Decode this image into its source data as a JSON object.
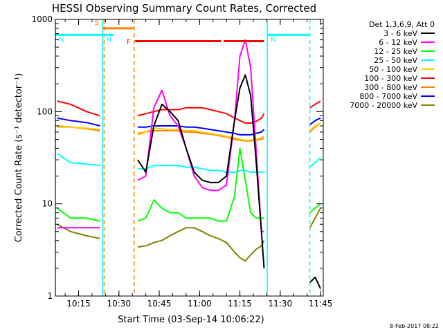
{
  "chart_data": {
    "type": "line",
    "title": "HESSI Observing Summary Count Rates, Corrected",
    "xlabel": "Start Time (03-Sep-14 10:06:22)",
    "ylabel": "Corrected Count Rate (s⁻¹ detector⁻¹)",
    "xlim": [
      "10:06:22",
      "11:46:00"
    ],
    "ylim": [
      1,
      1000
    ],
    "yscale": "log",
    "x_ticks": [
      "10:15",
      "10:30",
      "10:45",
      "11:00",
      "11:15",
      "11:30",
      "11:45"
    ],
    "y_ticks": [
      "1",
      "10",
      "100",
      "1000"
    ],
    "legend_title": "Det 1,3,6,9, Att 0",
    "legend_placement": "right",
    "footer": "8-Feb-2017 08:22",
    "flags": [
      {
        "label": "S",
        "color": "#ff8000",
        "x_start": "10:24:00",
        "x_end": "10:35:30",
        "y": 800
      },
      {
        "label": "N",
        "color": "#00ffff",
        "x_start": "10:06:22",
        "x_end": "10:24:00",
        "y": 680
      },
      {
        "label": "N",
        "color": "#00ffff",
        "x_start": "10:24:00",
        "x_end": "10:28:00",
        "y": 680
      },
      {
        "label": "N",
        "color": "#00ffff",
        "x_start": "11:25:10",
        "x_end": "11:41:00",
        "y": 680
      },
      {
        "label": "F",
        "color": "#ff0000",
        "x_start": "10:36:00",
        "x_end": "11:08:00",
        "y": 580
      },
      {
        "label": "",
        "color": "#ff0000",
        "x_start": "11:09:00",
        "x_end": "11:24:00",
        "y": 580
      }
    ],
    "vlines": [
      {
        "x": "10:06:22",
        "color": "#00ffff",
        "style": "solid"
      },
      {
        "x": "10:24:00",
        "color": "#00ffff",
        "style": "solid"
      },
      {
        "x": "10:24:30",
        "color": "#ff8000",
        "style": "dashed"
      },
      {
        "x": "10:35:40",
        "color": "#ff8000",
        "style": "dashed"
      },
      {
        "x": "11:25:10",
        "color": "#00ffff",
        "style": "solid"
      },
      {
        "x": "11:41:00",
        "color": "#00ffff",
        "style": "dashed"
      }
    ],
    "gaps": [
      [
        "10:24:00",
        "10:36:00"
      ],
      [
        "11:25:10",
        "11:41:00"
      ]
    ],
    "x_data": [
      "10:07",
      "10:12",
      "10:18",
      "10:23",
      "10:37",
      "10:40",
      "10:43",
      "10:46",
      "10:49",
      "10:52",
      "10:55",
      "10:58",
      "11:01",
      "11:04",
      "11:07",
      "11:10",
      "11:13",
      "11:15",
      "11:17",
      "11:19",
      "11:21",
      "11:23",
      "11:24",
      "11:41",
      "11:43",
      "11:45"
    ],
    "series": [
      {
        "name": "3 - 6 keV",
        "color": "#000000",
        "values": [
          null,
          null,
          null,
          null,
          30,
          22,
          70,
          120,
          100,
          80,
          40,
          22,
          18,
          17,
          17,
          20,
          80,
          180,
          250,
          150,
          30,
          5,
          2,
          1.4,
          1.6,
          1.2
        ]
      },
      {
        "name": "6 - 12 keV",
        "color": "#ff00ff",
        "values": [
          5.5,
          5.5,
          5.5,
          5.5,
          18,
          20,
          110,
          170,
          90,
          70,
          40,
          20,
          15,
          14,
          14,
          16,
          80,
          400,
          600,
          300,
          40,
          5,
          5,
          null,
          null,
          null
        ]
      },
      {
        "name": "12 - 25 keV",
        "color": "#00ff00",
        "values": [
          9,
          7,
          7,
          6.5,
          6.5,
          7,
          11,
          9,
          8,
          8,
          7,
          7,
          7,
          7,
          6.5,
          6.5,
          12,
          40,
          18,
          8,
          7,
          7,
          7,
          8,
          9,
          10
        ]
      },
      {
        "name": "25 - 50 keV",
        "color": "#00ffff",
        "values": [
          35,
          28,
          27,
          26,
          24,
          24,
          26,
          26,
          26,
          26,
          25,
          25,
          24,
          23,
          23,
          22,
          22,
          23,
          23,
          22,
          22,
          22,
          22,
          25,
          28,
          32
        ]
      },
      {
        "name": "50 - 100 keV",
        "color": "#ffcc00",
        "values": [
          68,
          68,
          66,
          64,
          56,
          60,
          66,
          65,
          64,
          64,
          62,
          62,
          60,
          58,
          56,
          54,
          52,
          50,
          49,
          49,
          50,
          52,
          54,
          62,
          70,
          75
        ]
      },
      {
        "name": "100 - 300 keV",
        "color": "#ff0000",
        "values": [
          130,
          120,
          100,
          90,
          90,
          95,
          100,
          105,
          105,
          105,
          110,
          110,
          110,
          105,
          100,
          95,
          85,
          80,
          75,
          75,
          78,
          85,
          95,
          110,
          120,
          130
        ]
      },
      {
        "name": "300 - 800 keV",
        "color": "#ff8000",
        "values": [
          70,
          68,
          65,
          62,
          58,
          60,
          62,
          62,
          62,
          62,
          60,
          60,
          58,
          57,
          55,
          53,
          50,
          49,
          48,
          48,
          49,
          50,
          52,
          60,
          68,
          75
        ]
      },
      {
        "name": "800 - 7000 keV",
        "color": "#0000ff",
        "values": [
          85,
          80,
          76,
          70,
          68,
          68,
          70,
          70,
          70,
          70,
          68,
          68,
          66,
          64,
          62,
          60,
          58,
          56,
          56,
          56,
          58,
          60,
          64,
          72,
          80,
          85
        ]
      },
      {
        "name": "7000 - 20000 keV",
        "color": "#808000",
        "values": [
          6,
          5,
          4.5,
          4.2,
          3.4,
          3.5,
          3.8,
          4,
          4.5,
          5,
          5.5,
          5.5,
          5,
          4.5,
          4.2,
          3.8,
          3,
          2.6,
          2.4,
          2.8,
          3.2,
          3.5,
          4,
          5.5,
          7,
          9
        ]
      }
    ]
  }
}
